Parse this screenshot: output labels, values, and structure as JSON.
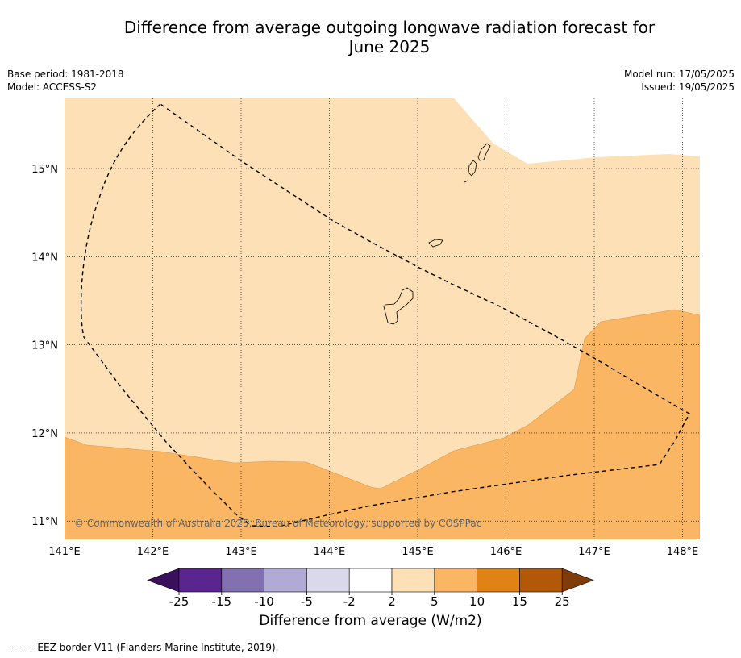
{
  "title_line1": "Difference from average outgoing longwave radiation forecast for",
  "title_line2": "June 2025",
  "base_period": "Base period: 1981-2018",
  "model": "Model: ACCESS-S2",
  "model_run": "Model run: 17/05/2025",
  "issued": "Issued: 19/05/2025",
  "copyright": "© Commonwealth of Australia 2025, Bureau of Meteorology, supported by COSPPac",
  "lon_labels": [
    "141°E",
    "142°E",
    "143°E",
    "144°E",
    "145°E",
    "146°E",
    "147°E",
    "148°E"
  ],
  "lat_labels": [
    "15°N",
    "14°N",
    "13°N",
    "12°N",
    "11°N"
  ],
  "colorbar": {
    "title": "Difference from average (W/m2)",
    "ticks": [
      "-25",
      "-15",
      "-10",
      "-5",
      "-2",
      "2",
      "5",
      "10",
      "15",
      "25"
    ],
    "colors": [
      "#3b0f5c",
      "#5b2590",
      "#8171b1",
      "#b1aad4",
      "#d9d9ec",
      "#ffffff",
      "#fde0b6",
      "#fbb663",
      "#e08214",
      "#b35806",
      "#7f3b08"
    ]
  },
  "footer": "--  --  -- EEZ border V11 (Flanders Marine Institute, 2019)."
}
